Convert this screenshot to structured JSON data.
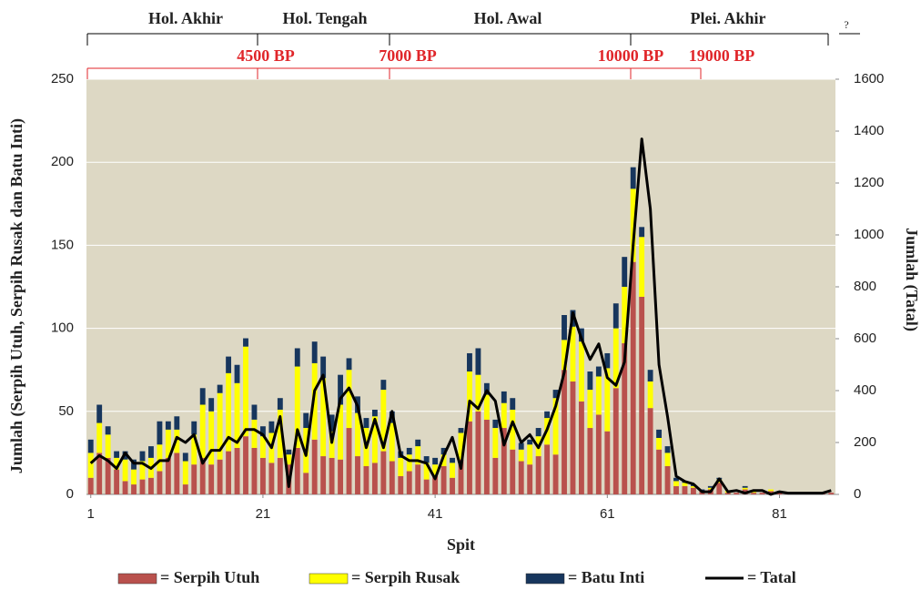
{
  "chart_data": {
    "type": "bar",
    "stacked": true,
    "periods": [
      "Hol. Akhir",
      "Hol. Tengah",
      "Hol. Awal",
      "Plei. Akhir",
      "?"
    ],
    "dates": [
      "4500 BP",
      "7000 BP",
      "10000 BP",
      "19000 BP"
    ],
    "xlabel": "Spit",
    "ylabel": "Jumlah (Serpih Utuh, Serpih Rusak dan Batu Inti)",
    "y2label": "Jumlah (Tatal)",
    "x": [
      1,
      2,
      3,
      4,
      5,
      6,
      7,
      8,
      9,
      10,
      11,
      12,
      13,
      14,
      15,
      16,
      17,
      18,
      19,
      20,
      21,
      22,
      23,
      24,
      25,
      26,
      27,
      28,
      29,
      30,
      31,
      32,
      33,
      34,
      35,
      36,
      37,
      38,
      39,
      40,
      41,
      42,
      43,
      44,
      45,
      46,
      47,
      48,
      49,
      50,
      51,
      52,
      53,
      54,
      55,
      56,
      57,
      58,
      59,
      60,
      61,
      62,
      63,
      64,
      65,
      66,
      67,
      68,
      69,
      70,
      71,
      72,
      73,
      74,
      75,
      76,
      77,
      78,
      79,
      80,
      81,
      82,
      83,
      84,
      85,
      86,
      87
    ],
    "xlim": [
      0.5,
      87.5
    ],
    "xticks": [
      1,
      21,
      41,
      61,
      81
    ],
    "ylim": [
      0,
      250
    ],
    "yticks": [
      0,
      50,
      100,
      150,
      200,
      250
    ],
    "y2lim": [
      0,
      1600
    ],
    "y2ticks": [
      0,
      200,
      400,
      600,
      800,
      1000,
      1200,
      1400,
      1600
    ],
    "grid": true,
    "background": "#ddd8c4",
    "series": [
      {
        "name": "= Serpih Utuh",
        "color": "#b9514d",
        "values": [
          10,
          25,
          22,
          15,
          8,
          6,
          9,
          10,
          14,
          22,
          25,
          6,
          18,
          22,
          18,
          21,
          26,
          28,
          35,
          28,
          22,
          19,
          22,
          18,
          28,
          13,
          33,
          23,
          22,
          21,
          40,
          23,
          17,
          19,
          26,
          20,
          11,
          14,
          18,
          9,
          11,
          17,
          10,
          21,
          44,
          50,
          45,
          22,
          40,
          27,
          20,
          18,
          23,
          30,
          24,
          75,
          68,
          56,
          40,
          48,
          38,
          64,
          91,
          140,
          119,
          52,
          27,
          17,
          5,
          5,
          4,
          2,
          3,
          7,
          1,
          1,
          3,
          1,
          1,
          2,
          1,
          1,
          1,
          1,
          1,
          1,
          1
        ]
      },
      {
        "name": "= Serpih Rusak",
        "color": "#ffff00",
        "values": [
          15,
          18,
          14,
          7,
          13,
          9,
          11,
          12,
          16,
          17,
          14,
          14,
          18,
          32,
          32,
          40,
          47,
          39,
          54,
          17,
          13,
          18,
          29,
          6,
          49,
          27,
          46,
          47,
          16,
          33,
          35,
          26,
          23,
          28,
          37,
          23,
          11,
          10,
          11,
          10,
          7,
          7,
          9,
          16,
          30,
          22,
          15,
          18,
          15,
          24,
          7,
          12,
          12,
          16,
          34,
          18,
          33,
          36,
          23,
          23,
          38,
          36,
          34,
          44,
          36,
          16,
          7,
          8,
          3,
          2,
          1,
          0,
          1,
          2,
          1,
          0,
          1,
          1,
          0,
          1,
          0,
          0,
          0,
          0,
          0,
          0,
          0
        ]
      },
      {
        "name": "= Batu Inti",
        "color": "#17365d",
        "values": [
          8,
          11,
          5,
          4,
          5,
          6,
          6,
          7,
          14,
          5,
          8,
          5,
          8,
          10,
          8,
          5,
          10,
          11,
          5,
          9,
          6,
          7,
          7,
          3,
          11,
          9,
          13,
          13,
          10,
          18,
          7,
          10,
          6,
          4,
          6,
          7,
          4,
          4,
          4,
          4,
          4,
          4,
          3,
          3,
          11,
          16,
          7,
          5,
          7,
          7,
          4,
          3,
          5,
          4,
          5,
          15,
          10,
          8,
          11,
          6,
          9,
          15,
          18,
          13,
          6,
          7,
          5,
          4,
          2,
          1,
          1,
          1,
          1,
          1,
          0,
          0,
          1,
          0,
          0,
          0,
          1,
          0,
          0,
          0,
          0,
          0,
          0
        ]
      },
      {
        "name": "= Tatal",
        "color": "#000000",
        "type": "line",
        "axis": "y2",
        "values": [
          120,
          150,
          130,
          100,
          160,
          120,
          120,
          100,
          130,
          130,
          220,
          200,
          230,
          120,
          170,
          170,
          220,
          200,
          250,
          250,
          230,
          180,
          300,
          30,
          250,
          150,
          400,
          460,
          200,
          370,
          410,
          340,
          180,
          290,
          180,
          320,
          150,
          130,
          130,
          120,
          60,
          150,
          220,
          100,
          360,
          330,
          400,
          360,
          190,
          280,
          200,
          230,
          180,
          250,
          340,
          470,
          700,
          600,
          520,
          580,
          450,
          420,
          510,
          960,
          1370,
          1100,
          500,
          300,
          70,
          50,
          40,
          10,
          10,
          60,
          10,
          15,
          5,
          15,
          15,
          0,
          10,
          5,
          5,
          5,
          5,
          5,
          15
        ]
      }
    ]
  }
}
